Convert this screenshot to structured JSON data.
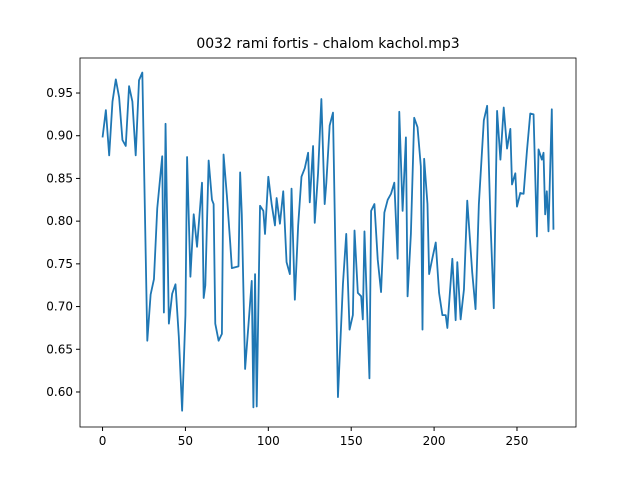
{
  "chart_data": {
    "type": "line",
    "title": "0032 rami fortis - chalom kachol.mp3",
    "x": [
      0,
      2,
      4,
      6,
      8,
      10,
      12,
      14,
      16,
      18,
      20,
      22,
      24,
      27,
      29,
      31,
      33,
      36,
      37,
      38,
      40,
      42,
      44,
      46,
      48,
      50,
      51,
      53,
      55,
      57,
      60,
      61,
      62,
      64,
      66,
      67,
      68,
      70,
      72,
      73,
      75,
      77,
      78,
      82,
      83,
      84,
      86,
      88,
      90,
      91,
      92,
      93,
      95,
      97,
      98,
      100,
      102,
      104,
      105,
      107,
      109,
      111,
      113,
      114,
      116,
      118,
      120,
      122,
      124,
      125,
      127,
      128,
      130,
      132,
      134,
      135,
      137,
      139,
      142,
      145,
      147,
      149,
      151,
      152,
      154,
      156,
      157,
      158,
      161,
      162,
      164,
      166,
      168,
      170,
      172,
      174,
      176,
      178,
      179,
      181,
      183,
      184,
      186,
      188,
      190,
      192,
      193,
      194,
      196,
      197,
      199,
      201,
      203,
      205,
      207,
      208,
      211,
      213,
      214,
      216,
      218,
      220,
      223,
      225,
      227,
      230,
      232,
      234,
      236,
      238,
      240,
      242,
      244,
      246,
      247,
      249,
      250,
      252,
      254,
      256,
      258,
      260,
      262,
      263,
      265,
      266,
      267,
      268,
      269,
      271,
      272
    ],
    "series": [
      {
        "color": "#1f77b4",
        "values": [
          0.898,
          0.93,
          0.877,
          0.94,
          0.966,
          0.945,
          0.895,
          0.888,
          0.958,
          0.94,
          0.877,
          0.965,
          0.974,
          0.66,
          0.714,
          0.732,
          0.815,
          0.876,
          0.693,
          0.914,
          0.68,
          0.715,
          0.726,
          0.665,
          0.578,
          0.69,
          0.875,
          0.735,
          0.808,
          0.77,
          0.845,
          0.71,
          0.725,
          0.871,
          0.825,
          0.82,
          0.68,
          0.66,
          0.668,
          0.878,
          0.83,
          0.775,
          0.745,
          0.747,
          0.857,
          0.808,
          0.627,
          0.678,
          0.73,
          0.582,
          0.738,
          0.583,
          0.818,
          0.812,
          0.785,
          0.852,
          0.82,
          0.795,
          0.827,
          0.797,
          0.835,
          0.752,
          0.738,
          0.838,
          0.708,
          0.795,
          0.852,
          0.862,
          0.88,
          0.822,
          0.888,
          0.798,
          0.856,
          0.943,
          0.82,
          0.845,
          0.912,
          0.927,
          0.594,
          0.726,
          0.785,
          0.673,
          0.69,
          0.789,
          0.716,
          0.712,
          0.685,
          0.788,
          0.616,
          0.812,
          0.82,
          0.755,
          0.717,
          0.81,
          0.825,
          0.832,
          0.845,
          0.756,
          0.928,
          0.812,
          0.898,
          0.712,
          0.785,
          0.921,
          0.91,
          0.864,
          0.673,
          0.873,
          0.82,
          0.738,
          0.757,
          0.775,
          0.716,
          0.69,
          0.69,
          0.675,
          0.756,
          0.684,
          0.752,
          0.685,
          0.72,
          0.824,
          0.74,
          0.697,
          0.82,
          0.918,
          0.935,
          0.8,
          0.698,
          0.929,
          0.872,
          0.933,
          0.885,
          0.908,
          0.843,
          0.856,
          0.817,
          0.833,
          0.832,
          0.882,
          0.926,
          0.925,
          0.782,
          0.884,
          0.872,
          0.88,
          0.808,
          0.835,
          0.788,
          0.931,
          0.79
        ]
      }
    ],
    "xlim": [
      -13.6,
      285.6
    ],
    "ylim": [
      0.559,
      0.991
    ],
    "xticks": [
      0,
      50,
      100,
      150,
      200,
      250
    ],
    "yticks": [
      {
        "value": 0.6,
        "label": "0.60"
      },
      {
        "value": 0.65,
        "label": "0.65"
      },
      {
        "value": 0.7,
        "label": "0.70"
      },
      {
        "value": 0.75,
        "label": "0.75"
      },
      {
        "value": 0.8,
        "label": "0.80"
      },
      {
        "value": 0.85,
        "label": "0.85"
      },
      {
        "value": 0.9,
        "label": "0.90"
      },
      {
        "value": 0.95,
        "label": "0.95"
      }
    ]
  }
}
